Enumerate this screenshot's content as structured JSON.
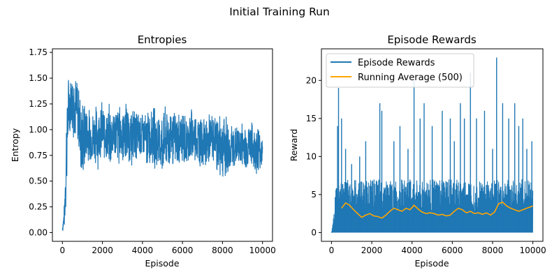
{
  "figure": {
    "suptitle": "Initial Training Run"
  },
  "chart_data": [
    {
      "type": "line",
      "title": "Entropies",
      "xlabel": "Episode",
      "ylabel": "Entropy",
      "xlim": [
        -500,
        10500
      ],
      "ylim": [
        -0.085,
        1.785
      ],
      "xticks": [
        0,
        2000,
        4000,
        6000,
        8000,
        10000
      ],
      "xtick_labels": [
        "0",
        "2000",
        "4000",
        "6000",
        "8000",
        "10000"
      ],
      "yticks": [
        0.0,
        0.25,
        0.5,
        0.75,
        1.0,
        1.25,
        1.5,
        1.75
      ],
      "ytick_labels": [
        "0.00",
        "0.25",
        "0.50",
        "0.75",
        "1.00",
        "1.25",
        "1.50",
        "1.75"
      ],
      "grid": false,
      "legend": null,
      "series": [
        {
          "color": "#1f77b4",
          "kind": "band",
          "x": [
            0,
            100,
            200,
            300,
            400,
            500,
            600,
            800,
            1000,
            1200,
            1400,
            1600,
            1800,
            2000,
            2200,
            2400,
            2600,
            2800,
            3000,
            3200,
            3400,
            3600,
            3800,
            4000,
            4200,
            4400,
            4600,
            4800,
            5000,
            5200,
            5400,
            5600,
            5800,
            6000,
            6200,
            6400,
            6600,
            6800,
            7000,
            7200,
            7400,
            7600,
            7800,
            8000,
            8200,
            8400,
            8600,
            8800,
            9000,
            9200,
            9400,
            9600,
            9800,
            10000
          ],
          "low": [
            0.0,
            0.02,
            0.25,
            0.85,
            0.95,
            0.85,
            0.9,
            0.75,
            0.4,
            0.65,
            0.6,
            0.65,
            0.6,
            0.7,
            0.65,
            0.58,
            0.7,
            0.62,
            0.65,
            0.68,
            0.6,
            0.68,
            0.7,
            0.65,
            0.6,
            0.65,
            0.6,
            0.55,
            0.5,
            0.58,
            0.6,
            0.62,
            0.6,
            0.6,
            0.62,
            0.6,
            0.65,
            0.6,
            0.62,
            0.6,
            0.62,
            0.7,
            0.5,
            0.52,
            0.48,
            0.55,
            0.6,
            0.62,
            0.6,
            0.58,
            0.6,
            0.55,
            0.55,
            0.6
          ],
          "high": [
            0.08,
            0.3,
            1.25,
            1.55,
            1.6,
            1.7,
            1.62,
            1.5,
            1.35,
            1.3,
            1.2,
            1.25,
            1.3,
            1.3,
            1.2,
            1.3,
            1.25,
            1.3,
            1.25,
            1.3,
            1.2,
            1.25,
            1.2,
            1.22,
            1.2,
            1.25,
            1.25,
            1.2,
            1.22,
            1.25,
            1.28,
            1.2,
            1.2,
            1.25,
            1.15,
            1.25,
            1.22,
            1.2,
            1.15,
            1.12,
            1.2,
            1.15,
            1.2,
            1.22,
            1.18,
            1.05,
            1.1,
            1.05,
            1.1,
            1.08,
            1.12,
            1.05,
            1.1,
            0.95
          ]
        }
      ]
    },
    {
      "type": "line",
      "title": "Episode Rewards",
      "xlabel": "Episode",
      "ylabel": "Reward",
      "xlim": [
        -500,
        10500
      ],
      "ylim": [
        -1.15,
        24.15
      ],
      "xticks": [
        0,
        2000,
        4000,
        6000,
        8000,
        10000
      ],
      "xtick_labels": [
        "0",
        "2000",
        "4000",
        "6000",
        "8000",
        "10000"
      ],
      "yticks": [
        0,
        5,
        10,
        15,
        20
      ],
      "ytick_labels": [
        "0",
        "5",
        "10",
        "15",
        "20"
      ],
      "grid": false,
      "legend": "top-left",
      "series": [
        {
          "name": "Episode Rewards",
          "color": "#1f77b4",
          "kind": "spikes",
          "band_x": [
            0,
            100,
            200,
            300,
            400,
            600,
            800,
            1000,
            2000,
            3000,
            4000,
            5000,
            6000,
            7000,
            8000,
            9000,
            10000
          ],
          "band_high": [
            0,
            2,
            6,
            7,
            7,
            7,
            7,
            7,
            7,
            7,
            7,
            7,
            7,
            7,
            7,
            7,
            7
          ],
          "peaks": [
            {
              "x": 300,
              "y": 14
            },
            {
              "x": 350,
              "y": 19
            },
            {
              "x": 500,
              "y": 15
            },
            {
              "x": 700,
              "y": 11
            },
            {
              "x": 1000,
              "y": 9
            },
            {
              "x": 1400,
              "y": 10
            },
            {
              "x": 1700,
              "y": 12
            },
            {
              "x": 2400,
              "y": 17
            },
            {
              "x": 2500,
              "y": 16
            },
            {
              "x": 3100,
              "y": 12
            },
            {
              "x": 3400,
              "y": 14
            },
            {
              "x": 3800,
              "y": 11
            },
            {
              "x": 4100,
              "y": 20
            },
            {
              "x": 4400,
              "y": 15
            },
            {
              "x": 4600,
              "y": 17
            },
            {
              "x": 5000,
              "y": 14
            },
            {
              "x": 5500,
              "y": 16
            },
            {
              "x": 5900,
              "y": 15
            },
            {
              "x": 6100,
              "y": 12
            },
            {
              "x": 6400,
              "y": 17
            },
            {
              "x": 6600,
              "y": 15
            },
            {
              "x": 6900,
              "y": 21
            },
            {
              "x": 7200,
              "y": 15
            },
            {
              "x": 7600,
              "y": 16
            },
            {
              "x": 8000,
              "y": 11
            },
            {
              "x": 8200,
              "y": 23
            },
            {
              "x": 8500,
              "y": 17
            },
            {
              "x": 8800,
              "y": 15
            },
            {
              "x": 9100,
              "y": 17
            },
            {
              "x": 9300,
              "y": 14
            },
            {
              "x": 9500,
              "y": 15
            },
            {
              "x": 9700,
              "y": 11
            },
            {
              "x": 9950,
              "y": 12
            }
          ]
        },
        {
          "name": "Running Average (500)",
          "color": "#ffa500",
          "kind": "line",
          "x": [
            500,
            700,
            900,
            1100,
            1300,
            1500,
            1700,
            1900,
            2100,
            2300,
            2500,
            2700,
            2900,
            3100,
            3300,
            3500,
            3700,
            3900,
            4100,
            4300,
            4500,
            4700,
            4900,
            5100,
            5300,
            5500,
            5700,
            5900,
            6100,
            6300,
            6500,
            6700,
            6900,
            7100,
            7300,
            7500,
            7700,
            7900,
            8100,
            8300,
            8500,
            8700,
            8900,
            9100,
            9300,
            9500,
            9700,
            9900,
            10000
          ],
          "y": [
            3.2,
            3.9,
            3.6,
            3.0,
            2.5,
            2.0,
            2.3,
            2.5,
            2.2,
            2.1,
            1.9,
            2.3,
            2.8,
            3.2,
            3.0,
            2.8,
            3.2,
            3.0,
            3.6,
            3.1,
            2.7,
            2.5,
            2.6,
            2.5,
            2.3,
            2.4,
            2.2,
            2.3,
            2.8,
            3.2,
            3.0,
            2.6,
            2.8,
            2.5,
            2.6,
            2.4,
            2.6,
            2.3,
            2.7,
            3.8,
            4.0,
            3.5,
            3.2,
            3.0,
            2.8,
            3.0,
            3.2,
            3.4,
            3.5
          ]
        }
      ]
    }
  ]
}
